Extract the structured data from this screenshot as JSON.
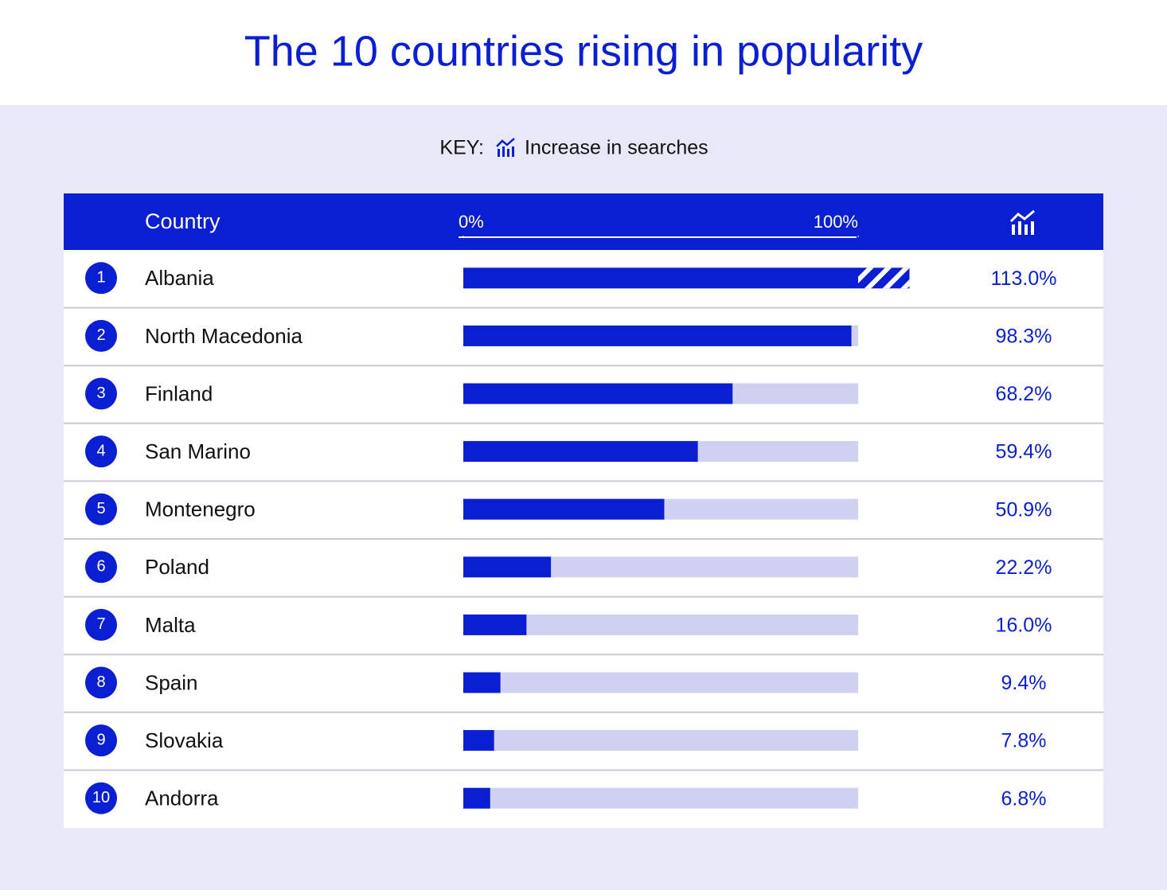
{
  "chart_data": {
    "type": "bar",
    "title": "The 10 countries rising in popularity",
    "key_prefix": "KEY:",
    "key_label": "Increase in searches",
    "category_header": "Country",
    "ranks": [
      1,
      2,
      3,
      4,
      5,
      6,
      7,
      8,
      9,
      10
    ],
    "categories": [
      "Albania",
      "North Macedonia",
      "Finland",
      "San Marino",
      "Montenegro",
      "Poland",
      "Malta",
      "Spain",
      "Slovakia",
      "Andorra"
    ],
    "values": [
      113.0,
      98.3,
      68.2,
      59.4,
      50.9,
      22.2,
      16.0,
      9.4,
      7.8,
      6.8
    ],
    "value_labels": [
      "113.0%",
      "98.3%",
      "68.2%",
      "59.4%",
      "50.9%",
      "22.2%",
      "16.0%",
      "9.4%",
      "7.8%",
      "6.8%"
    ],
    "xlim": [
      0,
      100
    ],
    "xticks": [
      {
        "value": 0,
        "label": "0%"
      },
      {
        "value": 100,
        "label": "100%"
      }
    ],
    "color": "#0a1fd2",
    "track_color": "#d0d0f1"
  }
}
